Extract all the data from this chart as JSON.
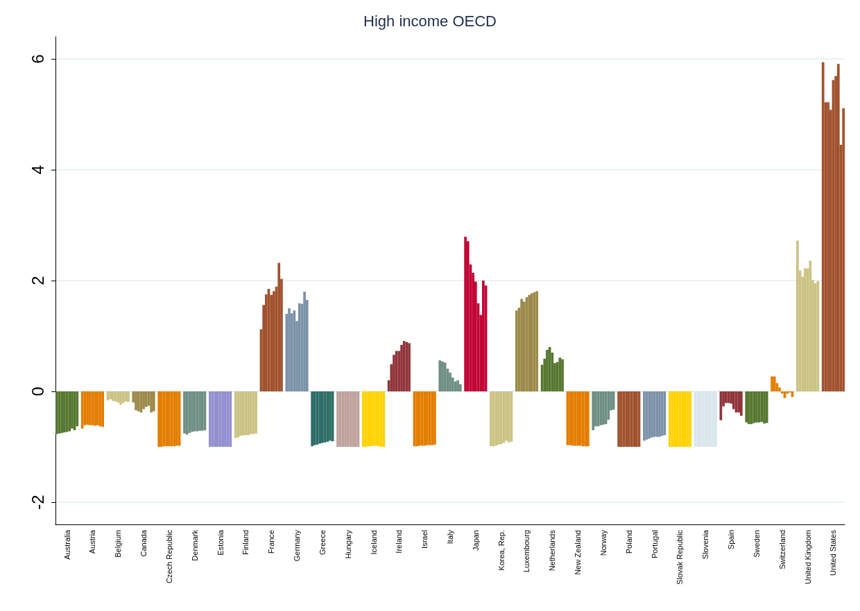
{
  "chart_data": {
    "type": "bar",
    "title": "High income OECD",
    "categories": [
      null,
      null,
      null,
      null,
      "Australia",
      null,
      null,
      null,
      null,
      null,
      null,
      null,
      null,
      null,
      "Austria",
      null,
      null,
      null,
      null,
      null,
      null,
      null,
      null,
      null,
      "Belgium",
      null,
      null,
      null,
      null,
      null,
      null,
      null,
      null,
      null,
      "Canada",
      null,
      null,
      null,
      null,
      null,
      null,
      null,
      null,
      null,
      "Czech Republic",
      null,
      null,
      null,
      null,
      null,
      null,
      null,
      null,
      null,
      "Denmark",
      null,
      null,
      null,
      null,
      null,
      null,
      null,
      null,
      null,
      "Estonia",
      null,
      null,
      null,
      null,
      null,
      null,
      null,
      null,
      null,
      "Finland",
      null,
      null,
      null,
      null,
      null,
      null,
      null,
      null,
      null,
      "France",
      null,
      null,
      null,
      null,
      null,
      null,
      null,
      null,
      null,
      "Germany",
      null,
      null,
      null,
      null,
      null,
      null,
      null,
      null,
      null,
      "Greece",
      null,
      null,
      null,
      null,
      null,
      null,
      null,
      null,
      null,
      "Hungary",
      null,
      null,
      null,
      null,
      null,
      null,
      null,
      null,
      null,
      "Iceland",
      null,
      null,
      null,
      null,
      null,
      null,
      null,
      null,
      null,
      "Ireland",
      null,
      null,
      null,
      null,
      null,
      null,
      null,
      null,
      null,
      "Israel",
      null,
      null,
      null,
      null,
      null,
      null,
      null,
      null,
      null,
      "Italy",
      null,
      null,
      null,
      null,
      null,
      null,
      null,
      null,
      null,
      "Japan",
      null,
      null,
      null,
      null,
      null,
      null,
      null,
      null,
      null,
      "Korea, Rep.",
      null,
      null,
      null,
      null,
      null,
      null,
      null,
      null,
      null,
      "Luxembourg",
      null,
      null,
      null,
      null,
      null,
      null,
      null,
      null,
      null,
      "Netherlands",
      null,
      null,
      null,
      null,
      null,
      null,
      null,
      null,
      null,
      "New Zealand",
      null,
      null,
      null,
      null,
      null,
      null,
      null,
      null,
      null,
      "Norway",
      null,
      null,
      null,
      null,
      null,
      null,
      null,
      null,
      null,
      "Poland",
      null,
      null,
      null,
      null,
      null,
      null,
      null,
      null,
      null,
      "Portugal",
      null,
      null,
      null,
      null,
      null,
      null,
      null,
      null,
      null,
      "Slovak Republic",
      null,
      null,
      null,
      null,
      null,
      null,
      null,
      null,
      null,
      "Slovenia",
      null,
      null,
      null,
      null,
      null,
      null,
      null,
      null,
      null,
      "Spain",
      null,
      null,
      null,
      null,
      null,
      null,
      null,
      null,
      null,
      "Sweden",
      null,
      null,
      null,
      null,
      null,
      null,
      null,
      null,
      null,
      "Switzerland",
      null,
      null,
      null,
      null,
      null,
      null,
      null,
      null,
      null,
      "United Kingdom",
      null,
      null,
      null,
      null,
      null,
      null,
      null,
      null,
      null,
      "United States",
      null,
      null,
      null,
      null
    ],
    "values": [
      -0.77,
      -0.76,
      -0.75,
      -0.74,
      -0.73,
      -0.72,
      -0.67,
      -0.7,
      -0.63,
      null,
      -0.67,
      -0.61,
      -0.6,
      -0.61,
      -0.61,
      -0.62,
      -0.61,
      -0.63,
      -0.64,
      null,
      -0.16,
      -0.14,
      -0.17,
      -0.18,
      -0.2,
      -0.24,
      -0.21,
      -0.18,
      -0.19,
      null,
      -0.2,
      -0.34,
      -0.36,
      -0.38,
      -0.32,
      -0.28,
      -0.26,
      -0.38,
      -0.36,
      null,
      -1,
      -1,
      -0.99,
      -0.99,
      -0.99,
      -0.99,
      -0.99,
      -0.98,
      -0.98,
      null,
      -0.76,
      -0.78,
      -0.75,
      -0.73,
      -0.72,
      -0.72,
      -0.71,
      -0.71,
      -0.7,
      null,
      -1,
      -1,
      -1,
      -1,
      -1,
      -1,
      -1,
      -1,
      -1,
      null,
      -0.84,
      -0.83,
      -0.8,
      -0.79,
      -0.79,
      -0.79,
      -0.77,
      -0.77,
      -0.76,
      null,
      1.12,
      1.56,
      1.75,
      1.85,
      1.74,
      1.81,
      1.89,
      2.32,
      2.03,
      null,
      1.4,
      1.5,
      1.41,
      1.46,
      1.27,
      1.59,
      1.58,
      1.8,
      1.65,
      null,
      -0.99,
      -0.97,
      -0.96,
      -0.94,
      -0.93,
      -0.92,
      -0.91,
      -0.89,
      -0.9,
      null,
      -1,
      -1,
      -1,
      -1,
      -1,
      -1,
      -1,
      -1,
      -1,
      null,
      -1,
      -1,
      -0.99,
      -0.99,
      -0.98,
      -0.98,
      -0.99,
      -1,
      -1,
      null,
      0.2,
      0.49,
      0.66,
      0.73,
      0.73,
      0.84,
      0.91,
      0.89,
      0.87,
      null,
      -0.99,
      -0.99,
      -0.98,
      -0.98,
      -0.98,
      -0.97,
      -0.97,
      -0.97,
      -0.96,
      null,
      0.56,
      0.54,
      0.52,
      0.41,
      0.34,
      0.25,
      0.18,
      0.2,
      0.13,
      null,
      2.79,
      2.71,
      2.29,
      2.14,
      1.98,
      1.59,
      1.38,
      2,
      1.91,
      null,
      -0.99,
      -0.99,
      -0.98,
      -0.96,
      -0.95,
      -0.93,
      -0.89,
      -0.92,
      -0.91,
      null,
      1.46,
      1.51,
      1.67,
      1.62,
      1.7,
      1.74,
      1.77,
      1.79,
      1.81,
      null,
      0.48,
      0.59,
      0.75,
      0.8,
      0.7,
      0.51,
      0.53,
      0.61,
      0.58,
      null,
      -0.97,
      -0.97,
      -0.98,
      -0.98,
      -0.98,
      -0.98,
      -0.99,
      -0.99,
      -0.99,
      null,
      -0.7,
      -0.63,
      -0.63,
      -0.61,
      -0.6,
      -0.59,
      -0.51,
      -0.34,
      -0.33,
      null,
      -1,
      -1,
      -1,
      -1,
      -1,
      -1,
      -1,
      -1,
      -1,
      null,
      -0.89,
      -0.87,
      -0.85,
      -0.83,
      -0.82,
      -0.82,
      -0.82,
      -0.8,
      -0.79,
      null,
      -1,
      -1,
      -1,
      -1,
      -1,
      -1,
      -1,
      -1,
      -1,
      null,
      -1,
      -1,
      -1,
      -1,
      -1,
      -1,
      -1,
      -1,
      -1,
      null,
      -0.52,
      -0.27,
      -0.21,
      -0.21,
      -0.22,
      -0.32,
      -0.38,
      -0.38,
      -0.44,
      null,
      -0.56,
      -0.59,
      -0.59,
      -0.57,
      -0.56,
      -0.56,
      -0.55,
      -0.58,
      -0.57,
      null,
      0.27,
      0.27,
      0.15,
      0.07,
      -0.04,
      -0.12,
      -0.04,
      -0.02,
      -0.1,
      null,
      2.72,
      2.18,
      2.07,
      2.22,
      2.22,
      2.36,
      2.01,
      1.95,
      1.99,
      null,
      5.94,
      5.22,
      5.22,
      5.08,
      5.62,
      5.69,
      5.91,
      4.45,
      5.11
    ],
    "colors": [
      "#55772f",
      "#55772f",
      "#55772f",
      "#55772f",
      "#55772f",
      "#55772f",
      "#55772f",
      "#55772f",
      "#55772f",
      null,
      "#e47d00",
      "#e47d00",
      "#e47d00",
      "#e47d00",
      "#e47d00",
      "#e47d00",
      "#e47d00",
      "#e47d00",
      "#e47d00",
      null,
      "#cbc383",
      "#cbc383",
      "#cbc383",
      "#cbc383",
      "#cbc383",
      "#cbc383",
      "#cbc383",
      "#cbc383",
      "#cbc383",
      null,
      "#9b8a4a",
      "#9b8a4a",
      "#9b8a4a",
      "#9b8a4a",
      "#9b8a4a",
      "#9b8a4a",
      "#9b8a4a",
      "#9b8a4a",
      "#9b8a4a",
      null,
      "#e47d00",
      "#e47d00",
      "#e47d00",
      "#e47d00",
      "#e47d00",
      "#e47d00",
      "#e47d00",
      "#e47d00",
      "#e47d00",
      null,
      "#6e8e84",
      "#6e8e84",
      "#6e8e84",
      "#6e8e84",
      "#6e8e84",
      "#6e8e84",
      "#6e8e84",
      "#6e8e84",
      "#6e8e84",
      null,
      "#938fd0",
      "#938fd0",
      "#938fd0",
      "#938fd0",
      "#938fd0",
      "#938fd0",
      "#938fd0",
      "#938fd0",
      "#938fd0",
      null,
      "#cbc383",
      "#cbc383",
      "#cbc383",
      "#cbc383",
      "#cbc383",
      "#cbc383",
      "#cbc383",
      "#cbc383",
      "#cbc383",
      null,
      "#a0522d",
      "#a0522d",
      "#a0522d",
      "#a0522d",
      "#a0522d",
      "#a0522d",
      "#a0522d",
      "#a0522d",
      "#a0522d",
      null,
      "#7b92a8",
      "#7b92a8",
      "#7b92a8",
      "#7b92a8",
      "#7b92a8",
      "#7b92a8",
      "#7b92a8",
      "#7b92a8",
      "#7b92a8",
      null,
      "#2d6d66",
      "#2d6d66",
      "#2d6d66",
      "#2d6d66",
      "#2d6d66",
      "#2d6d66",
      "#2d6d66",
      "#2d6d66",
      "#2d6d66",
      null,
      "#bfa19c",
      "#bfa19c",
      "#bfa19c",
      "#bfa19c",
      "#bfa19c",
      "#bfa19c",
      "#bfa19c",
      "#bfa19c",
      "#bfa19c",
      null,
      "#ffd200",
      "#ffd200",
      "#ffd200",
      "#ffd200",
      "#ffd200",
      "#ffd200",
      "#ffd200",
      "#ffd200",
      "#ffd200",
      null,
      "#90353b",
      "#90353b",
      "#90353b",
      "#90353b",
      "#90353b",
      "#90353b",
      "#90353b",
      "#90353b",
      "#90353b",
      null,
      "#e47d00",
      "#e47d00",
      "#e47d00",
      "#e47d00",
      "#e47d00",
      "#e47d00",
      "#e47d00",
      "#e47d00",
      "#e47d00",
      null,
      "#6e8e84",
      "#6e8e84",
      "#6e8e84",
      "#6e8e84",
      "#6e8e84",
      "#6e8e84",
      "#6e8e84",
      "#6e8e84",
      "#6e8e84",
      null,
      "#c10534",
      "#c10534",
      "#c10534",
      "#c10534",
      "#c10534",
      "#c10534",
      "#c10534",
      "#c10534",
      "#c10534",
      null,
      "#cbc383",
      "#cbc383",
      "#cbc383",
      "#cbc383",
      "#cbc383",
      "#cbc383",
      "#cbc383",
      "#cbc383",
      "#cbc383",
      null,
      "#9b8a4a",
      "#9b8a4a",
      "#9b8a4a",
      "#9b8a4a",
      "#9b8a4a",
      "#9b8a4a",
      "#9b8a4a",
      "#9b8a4a",
      "#9b8a4a",
      null,
      "#55772f",
      "#55772f",
      "#55772f",
      "#55772f",
      "#55772f",
      "#55772f",
      "#55772f",
      "#55772f",
      "#55772f",
      null,
      "#e47d00",
      "#e47d00",
      "#e47d00",
      "#e47d00",
      "#e47d00",
      "#e47d00",
      "#e47d00",
      "#e47d00",
      "#e47d00",
      null,
      "#6e8e84",
      "#6e8e84",
      "#6e8e84",
      "#6e8e84",
      "#6e8e84",
      "#6e8e84",
      "#6e8e84",
      "#6e8e84",
      "#6e8e84",
      null,
      "#a0522d",
      "#a0522d",
      "#a0522d",
      "#a0522d",
      "#a0522d",
      "#a0522d",
      "#a0522d",
      "#a0522d",
      "#a0522d",
      null,
      "#7b92a8",
      "#7b92a8",
      "#7b92a8",
      "#7b92a8",
      "#7b92a8",
      "#7b92a8",
      "#7b92a8",
      "#7b92a8",
      "#7b92a8",
      null,
      "#ffd200",
      "#ffd200",
      "#ffd200",
      "#ffd200",
      "#ffd200",
      "#ffd200",
      "#ffd200",
      "#ffd200",
      "#ffd200",
      null,
      "#d9e6eb",
      "#d9e6eb",
      "#d9e6eb",
      "#d9e6eb",
      "#d9e6eb",
      "#d9e6eb",
      "#d9e6eb",
      "#d9e6eb",
      "#d9e6eb",
      null,
      "#90353b",
      "#90353b",
      "#90353b",
      "#90353b",
      "#90353b",
      "#90353b",
      "#90353b",
      "#90353b",
      "#90353b",
      null,
      "#55772f",
      "#55772f",
      "#55772f",
      "#55772f",
      "#55772f",
      "#55772f",
      "#55772f",
      "#55772f",
      "#55772f",
      null,
      "#e47d00",
      "#e47d00",
      "#e47d00",
      "#e47d00",
      "#e47d00",
      "#e47d00",
      "#e47d00",
      "#e47d00",
      "#e47d00",
      null,
      "#cbc383",
      "#cbc383",
      "#cbc383",
      "#cbc383",
      "#cbc383",
      "#cbc383",
      "#cbc383",
      "#cbc383",
      "#cbc383",
      null,
      "#a0522d",
      "#a0522d",
      "#a0522d",
      "#a0522d",
      "#a0522d",
      "#a0522d",
      "#a0522d",
      "#a0522d",
      "#a0522d"
    ],
    "ylim": [
      -2.4,
      6.4
    ],
    "yticks": [
      -2,
      0,
      2,
      4,
      6
    ],
    "grid": "y"
  }
}
